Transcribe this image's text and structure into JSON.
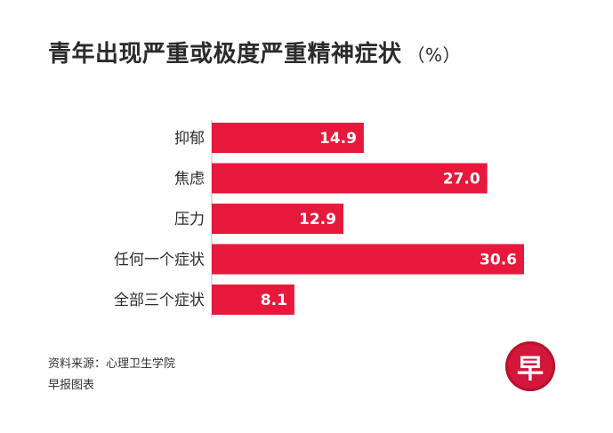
{
  "title": "青年出现严重或极度严重精神症状",
  "unit": "（%）",
  "chart_data": {
    "type": "bar",
    "orientation": "horizontal",
    "categories": [
      "抑郁",
      "焦虑",
      "压力",
      "任何一个症状",
      "全部三个症状"
    ],
    "values": [
      14.9,
      27.0,
      12.9,
      30.6,
      8.1
    ],
    "value_labels": [
      "14.9",
      "27.0",
      "12.9",
      "30.6",
      "8.1"
    ],
    "xlim": [
      0,
      30.6
    ],
    "bar_color": "#e8183d",
    "grid": false
  },
  "footer": {
    "source": "资料来源：心理卫生学院",
    "credit": "早报图表"
  },
  "logo": {
    "char": "早",
    "color": "#d3173a"
  }
}
